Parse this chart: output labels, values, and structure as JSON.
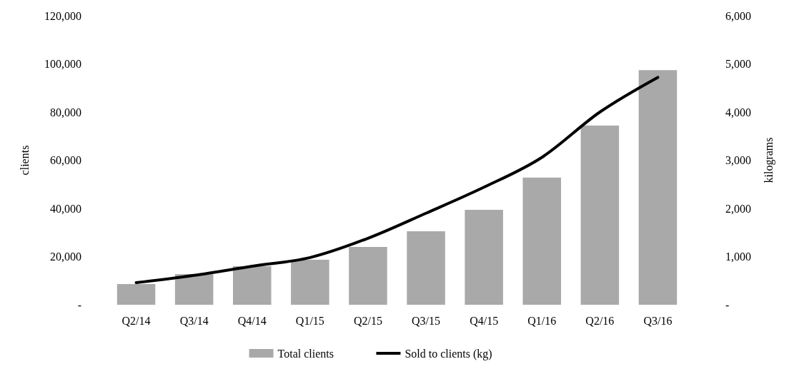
{
  "chart_data": {
    "type": "bar",
    "categories": [
      "Q2/14",
      "Q3/14",
      "Q4/14",
      "Q1/15",
      "Q2/15",
      "Q3/15",
      "Q4/15",
      "Q1/16",
      "Q2/16",
      "Q3/16"
    ],
    "ylabel": "clients",
    "y2label": "kilograms",
    "ylim": [
      0,
      120000
    ],
    "yticks": [
      {
        "value": 0,
        "label": "-"
      },
      {
        "value": 20000,
        "label": "20,000"
      },
      {
        "value": 40000,
        "label": "40,000"
      },
      {
        "value": 60000,
        "label": "60,000"
      },
      {
        "value": 80000,
        "label": "80,000"
      },
      {
        "value": 100000,
        "label": "100,000"
      },
      {
        "value": 120000,
        "label": "120,000"
      }
    ],
    "y2lim": [
      0,
      6000
    ],
    "y2ticks": [
      {
        "value": 0,
        "label": "-"
      },
      {
        "value": 1000,
        "label": "1,000"
      },
      {
        "value": 2000,
        "label": "2,000"
      },
      {
        "value": 3000,
        "label": "3,000"
      },
      {
        "value": 4000,
        "label": "4,000"
      },
      {
        "value": 5000,
        "label": "5,000"
      },
      {
        "value": 6000,
        "label": "6,000"
      }
    ],
    "series": [
      {
        "name": "Total clients",
        "color": "#a9a9a9",
        "values": [
          8600,
          12700,
          16000,
          18700,
          24000,
          30500,
          39400,
          52800,
          74400,
          97400
        ]
      },
      {
        "name": "Sold to clients (kg)",
        "type": "line",
        "axis": "y2",
        "color": "#000000",
        "values": [
          460,
          610,
          800,
          980,
          1380,
          1900,
          2440,
          3060,
          4000,
          4720
        ]
      }
    ],
    "legend": "bottom",
    "grid": false
  }
}
